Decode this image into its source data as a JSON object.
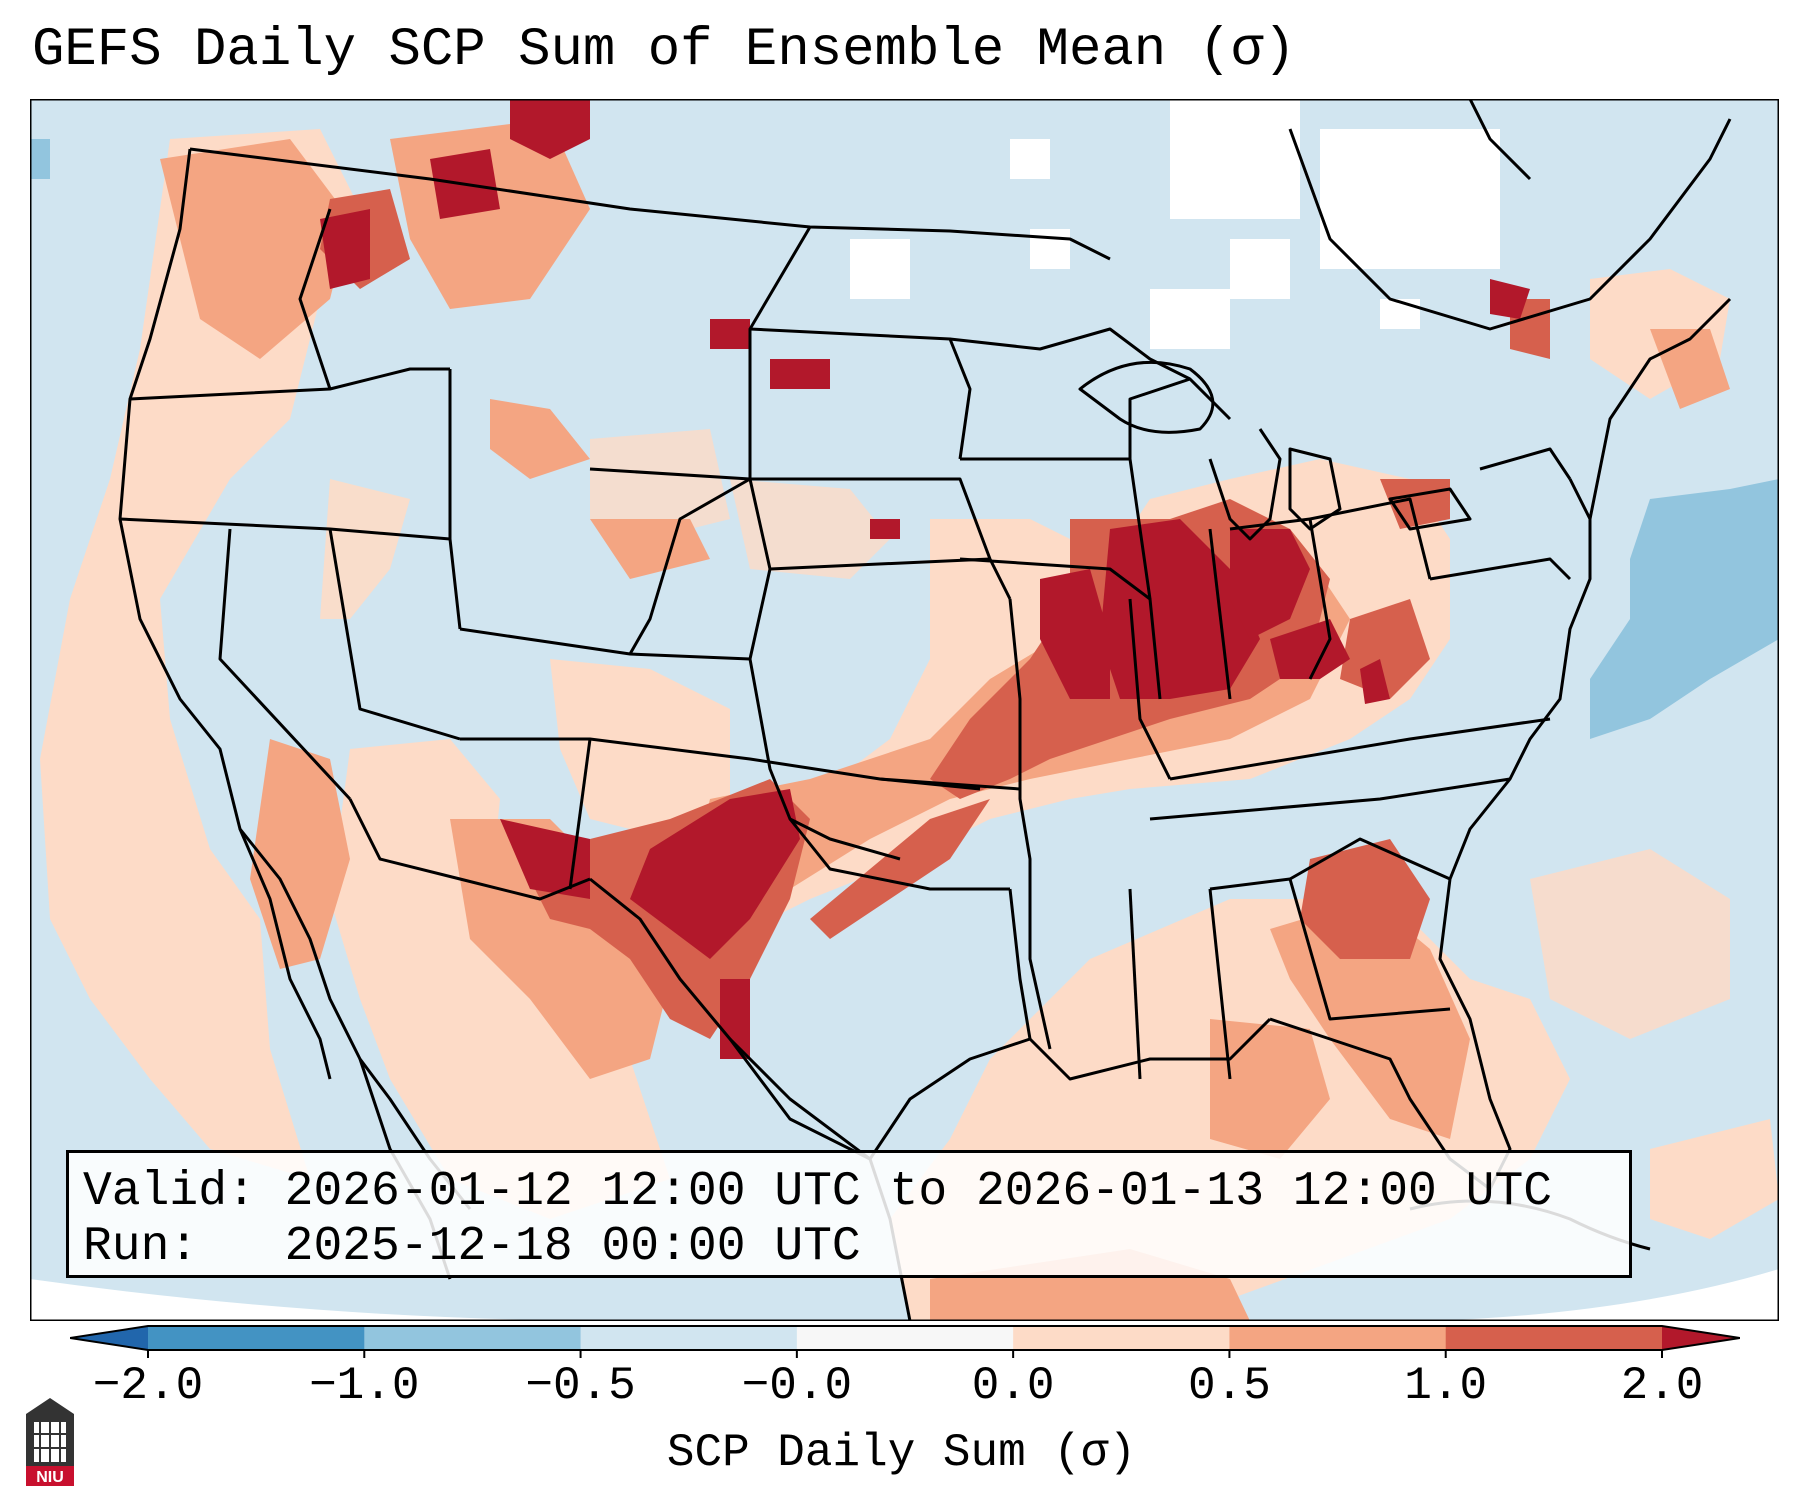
{
  "title": "GEFS Daily SCP Sum of Ensemble Mean (σ)",
  "info": {
    "valid_label": "Valid:",
    "valid_value": "2026-01-12 12:00 UTC to 2026-01-13 12:00 UTC",
    "run_label": "Run:",
    "run_value": "2025-12-18 00:00 UTC"
  },
  "colorbar": {
    "label": "SCP Daily Sum (σ)",
    "ticks": [
      "−2.0",
      "−1.0",
      "−0.5",
      "−0.0",
      "0.0",
      "0.5",
      "1.0",
      "2.0"
    ],
    "bins": [
      {
        "range": "-2.0 to -1.0",
        "color": "#4393c3"
      },
      {
        "range": "-1.0 to -0.5",
        "color": "#92c5de"
      },
      {
        "range": "-0.5 to -0.0",
        "color": "#d1e5f0"
      },
      {
        "range": "-0.0 to 0.0",
        "color": "#f7f7f7"
      },
      {
        "range": "0.0 to 0.5",
        "color": "#fddbc7"
      },
      {
        "range": "0.5 to 1.0",
        "color": "#f4a582"
      },
      {
        "range": "1.0 to 2.0",
        "color": "#d6604d"
      }
    ],
    "extend_low_color": "#2166ac",
    "extend_high_color": "#b2182b"
  },
  "map_colors": {
    "background": "#d1e5f0",
    "no_data": "#ffffff",
    "light_positive": "#fddbc7",
    "moderate_positive": "#f4a582",
    "strong_positive": "#d6604d",
    "extreme_positive": "#b2182b",
    "negative": "#92c5de"
  },
  "logo": {
    "text": "NIU",
    "color": "#c8102e"
  }
}
